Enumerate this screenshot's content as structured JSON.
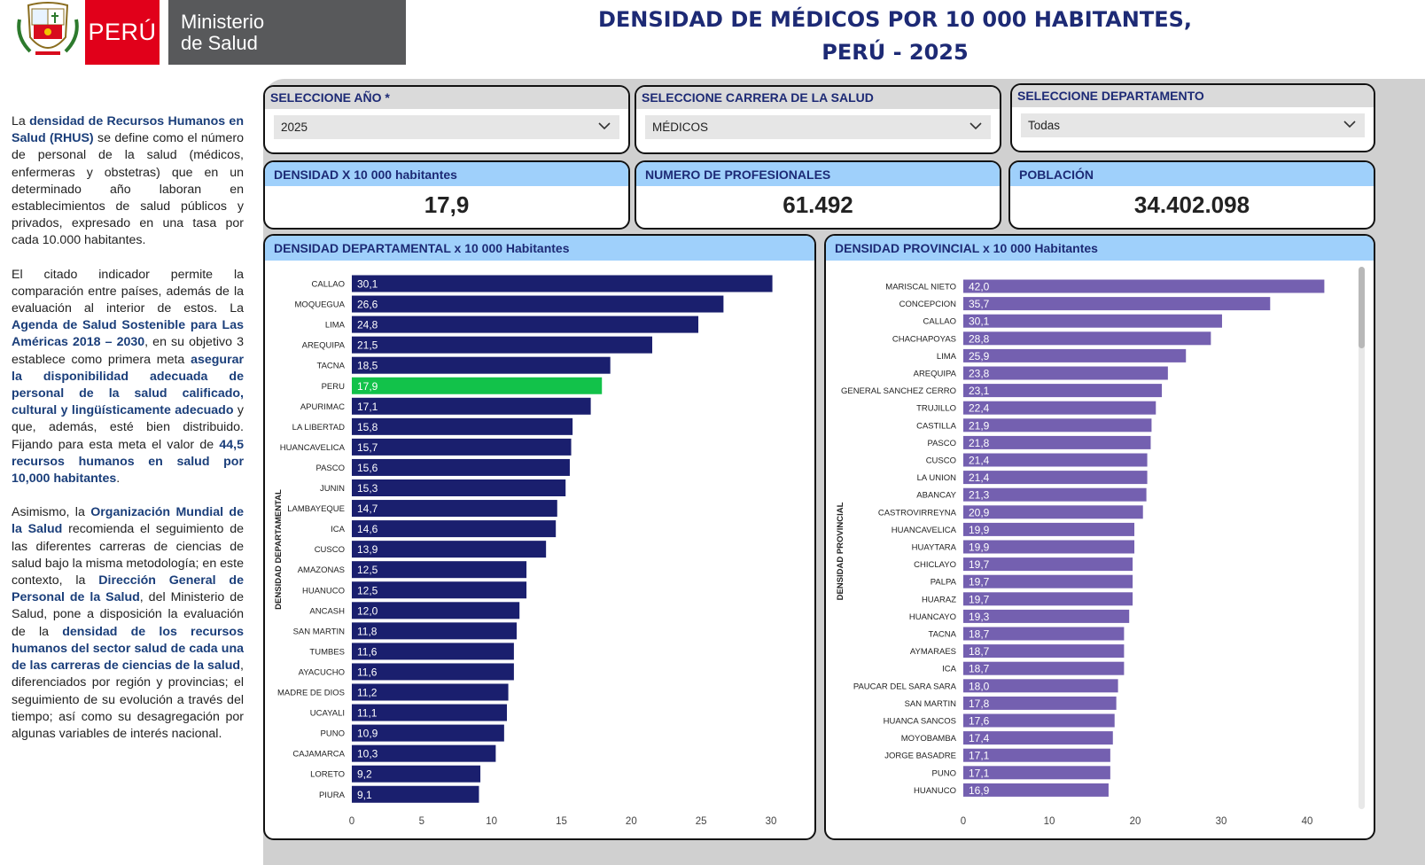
{
  "header": {
    "brand_peru": "PERÚ",
    "ministry_line1": "Ministerio",
    "ministry_line2": "de Salud",
    "title_line1": "DENSIDAD DE MÉDICOS POR 10 000 HABITANTES,",
    "title_line2": "PERÚ - 2025"
  },
  "intro": {
    "p1": [
      {
        "t": "La ",
        "b": false
      },
      {
        "t": "densidad de Recursos Humanos en Salud (RHUS)",
        "b": true
      },
      {
        "t": " se define como el número de personal de la salud (médicos, enfermeras y obstetras) que en un determinado año laboran en establecimientos de salud públicos y privados, expresado en una tasa por cada 10.000 habitantes.",
        "b": false
      }
    ],
    "p2": [
      {
        "t": "El citado indicador permite la comparación entre países, además de la evaluación al interior de estos. La ",
        "b": false
      },
      {
        "t": "Agenda de Salud Sostenible para Las Américas 2018 – 2030",
        "b": true
      },
      {
        "t": ", en su objetivo 3 establece como primera meta ",
        "b": false
      },
      {
        "t": "asegurar la disponibilidad adecuada de personal de la salud calificado, cultural y lingüísticamente adecuado",
        "b": true
      },
      {
        "t": " y que, además, esté bien distribuido. Fijando para esta meta el valor de ",
        "b": false
      },
      {
        "t": "44,5 recursos humanos en salud por 10,000 habitantes",
        "b": true
      },
      {
        "t": ".",
        "b": false
      }
    ],
    "p3": [
      {
        "t": "Asimismo, la ",
        "b": false
      },
      {
        "t": "Organización Mundial de la Salud",
        "b": true
      },
      {
        "t": " recomienda el seguimiento de las diferentes carreras de ciencias de salud bajo la misma metodología; en este contexto, la ",
        "b": false
      },
      {
        "t": "Dirección General de Personal de la Salud",
        "b": true
      },
      {
        "t": ", del Ministerio de Salud, pone a disposición la evaluación de la ",
        "b": false
      },
      {
        "t": "densidad de los recursos humanos del sector salud de cada una de las carreras de ciencias de la salud",
        "b": true
      },
      {
        "t": ", diferenciados por región y provincias; el seguimiento de su evolución a través del tiempo; así como su desagregación por algunas variables de interés nacional.",
        "b": false
      }
    ]
  },
  "slicers": {
    "year": {
      "label": "SELECCIONE AÑO *",
      "value": "2025"
    },
    "career": {
      "label": "SELECCIONE CARRERA DE LA SALUD",
      "value": "MÉDICOS"
    },
    "department": {
      "label": "SELECCIONE DEPARTAMENTO",
      "value": "Todas"
    }
  },
  "kpis": {
    "density": {
      "label": "DENSIDAD X 10 000 habitantes",
      "value": "17,9"
    },
    "professionals": {
      "label": "NUMERO DE PROFESIONALES",
      "value": "61.492"
    },
    "population": {
      "label": "POBLACIÓN",
      "value": "34.402.098"
    }
  },
  "colors": {
    "dept_bar": "#1a1f6e",
    "highlight_bar": "#12c24a",
    "prov_bar": "#7460b0",
    "title_blue": "#1d2a75"
  },
  "chart_data": [
    {
      "type": "bar",
      "orientation": "horizontal",
      "title": "DENSIDAD DEPARTAMENTAL x 10 000 Habitantes",
      "ylabel": "DENSIDAD DEPARTAMENTAL",
      "xlim": [
        0,
        30
      ],
      "xticks": [
        0,
        5,
        10,
        15,
        20,
        25,
        30
      ],
      "highlight": "PERU",
      "categories": [
        "CALLAO",
        "MOQUEGUA",
        "LIMA",
        "AREQUIPA",
        "TACNA",
        "PERU",
        "APURIMAC",
        "LA LIBERTAD",
        "HUANCAVELICA",
        "PASCO",
        "JUNIN",
        "LAMBAYEQUE",
        "ICA",
        "CUSCO",
        "AMAZONAS",
        "HUANUCO",
        "ANCASH",
        "SAN MARTIN",
        "TUMBES",
        "AYACUCHO",
        "MADRE DE DIOS",
        "UCAYALI",
        "PUNO",
        "CAJAMARCA",
        "LORETO",
        "PIURA"
      ],
      "values": [
        30.1,
        26.6,
        24.8,
        21.5,
        18.5,
        17.9,
        17.1,
        15.8,
        15.7,
        15.6,
        15.3,
        14.7,
        14.6,
        13.9,
        12.5,
        12.5,
        12.0,
        11.8,
        11.6,
        11.6,
        11.2,
        11.1,
        10.9,
        10.3,
        9.2,
        9.1
      ],
      "labels": [
        "30,1",
        "26,6",
        "24,8",
        "21,5",
        "18,5",
        "17,9",
        "17,1",
        "15,8",
        "15,7",
        "15,6",
        "15,3",
        "14,7",
        "14,6",
        "13,9",
        "12,5",
        "12,5",
        "12,0",
        "11,8",
        "11,6",
        "11,6",
        "11,2",
        "11,1",
        "10,9",
        "10,3",
        "9,2",
        "9,1"
      ]
    },
    {
      "type": "bar",
      "orientation": "horizontal",
      "title": "DENSIDAD PROVINCIAL x 10 000 Habitantes",
      "ylabel": "DENSIDAD PROVINCIAL",
      "xlim": [
        0,
        40
      ],
      "xticks": [
        0,
        10,
        20,
        30,
        40
      ],
      "categories": [
        "MARISCAL NIETO",
        "CONCEPCION",
        "CALLAO",
        "CHACHAPOYAS",
        "LIMA",
        "AREQUIPA",
        "GENERAL SANCHEZ CERRO",
        "TRUJILLO",
        "CASTILLA",
        "PASCO",
        "CUSCO",
        "LA UNION",
        "ABANCAY",
        "CASTROVIRREYNA",
        "HUANCAVELICA",
        "HUAYTARA",
        "CHICLAYO",
        "PALPA",
        "HUARAZ",
        "HUANCAYO",
        "TACNA",
        "AYMARAES",
        "ICA",
        "PAUCAR DEL SARA SARA",
        "SAN MARTIN",
        "HUANCA SANCOS",
        "MOYOBAMBA",
        "JORGE BASADRE",
        "PUNO",
        "HUANUCO"
      ],
      "values": [
        42.0,
        35.7,
        30.1,
        28.8,
        25.9,
        23.8,
        23.1,
        22.4,
        21.9,
        21.8,
        21.4,
        21.4,
        21.3,
        20.9,
        19.9,
        19.9,
        19.7,
        19.7,
        19.7,
        19.3,
        18.7,
        18.7,
        18.7,
        18.0,
        17.8,
        17.6,
        17.4,
        17.1,
        17.1,
        16.9
      ],
      "labels": [
        "42,0",
        "35,7",
        "30,1",
        "28,8",
        "25,9",
        "23,8",
        "23,1",
        "22,4",
        "21,9",
        "21,8",
        "21,4",
        "21,4",
        "21,3",
        "20,9",
        "19,9",
        "19,9",
        "19,7",
        "19,7",
        "19,7",
        "19,3",
        "18,7",
        "18,7",
        "18,7",
        "18,0",
        "17,8",
        "17,6",
        "17,4",
        "17,1",
        "17,1",
        "16,9"
      ]
    }
  ]
}
